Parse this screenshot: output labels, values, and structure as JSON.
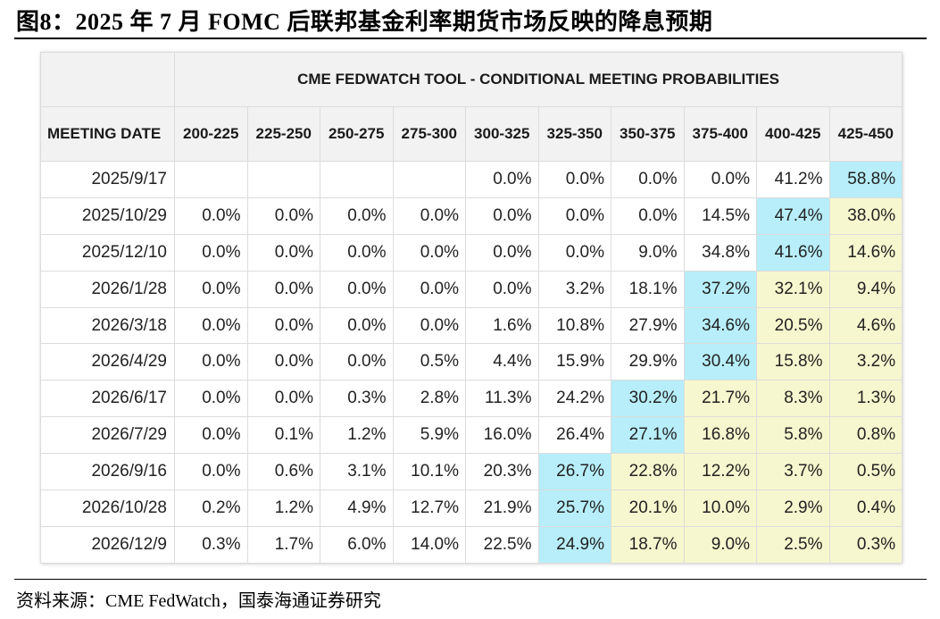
{
  "figure": {
    "title": "图8：2025 年 7 月 FOMC 后联邦基金利率期货市场反映的降息预期",
    "source": "资料来源：CME FedWatch，国泰海通证券研究"
  },
  "table": {
    "banner": "CME FEDWATCH TOOL - CONDITIONAL MEETING PROBABILITIES",
    "date_header": "MEETING DATE",
    "rate_headers": [
      "200-225",
      "225-250",
      "250-275",
      "275-300",
      "300-325",
      "325-350",
      "350-375",
      "375-400",
      "400-425",
      "425-450"
    ],
    "rows": [
      {
        "date": "2025/9/17",
        "values": [
          "",
          "",
          "",
          "",
          "0.0%",
          "0.0%",
          "0.0%",
          "0.0%",
          "41.2%",
          "58.8%"
        ],
        "hl": [
          "",
          "",
          "",
          "",
          "",
          "",
          "",
          "",
          "",
          "c"
        ]
      },
      {
        "date": "2025/10/29",
        "values": [
          "0.0%",
          "0.0%",
          "0.0%",
          "0.0%",
          "0.0%",
          "0.0%",
          "0.0%",
          "14.5%",
          "47.4%",
          "38.0%"
        ],
        "hl": [
          "",
          "",
          "",
          "",
          "",
          "",
          "",
          "",
          "c",
          "y"
        ]
      },
      {
        "date": "2025/12/10",
        "values": [
          "0.0%",
          "0.0%",
          "0.0%",
          "0.0%",
          "0.0%",
          "0.0%",
          "9.0%",
          "34.8%",
          "41.6%",
          "14.6%"
        ],
        "hl": [
          "",
          "",
          "",
          "",
          "",
          "",
          "",
          "",
          "c",
          "y"
        ]
      },
      {
        "date": "2026/1/28",
        "values": [
          "0.0%",
          "0.0%",
          "0.0%",
          "0.0%",
          "0.0%",
          "3.2%",
          "18.1%",
          "37.2%",
          "32.1%",
          "9.4%"
        ],
        "hl": [
          "",
          "",
          "",
          "",
          "",
          "",
          "",
          "c",
          "y",
          "y"
        ]
      },
      {
        "date": "2026/3/18",
        "values": [
          "0.0%",
          "0.0%",
          "0.0%",
          "0.0%",
          "1.6%",
          "10.8%",
          "27.9%",
          "34.6%",
          "20.5%",
          "4.6%"
        ],
        "hl": [
          "",
          "",
          "",
          "",
          "",
          "",
          "",
          "c",
          "y",
          "y"
        ]
      },
      {
        "date": "2026/4/29",
        "values": [
          "0.0%",
          "0.0%",
          "0.0%",
          "0.5%",
          "4.4%",
          "15.9%",
          "29.9%",
          "30.4%",
          "15.8%",
          "3.2%"
        ],
        "hl": [
          "",
          "",
          "",
          "",
          "",
          "",
          "",
          "c",
          "y",
          "y"
        ]
      },
      {
        "date": "2026/6/17",
        "values": [
          "0.0%",
          "0.0%",
          "0.3%",
          "2.8%",
          "11.3%",
          "24.2%",
          "30.2%",
          "21.7%",
          "8.3%",
          "1.3%"
        ],
        "hl": [
          "",
          "",
          "",
          "",
          "",
          "",
          "c",
          "y",
          "y",
          "y"
        ]
      },
      {
        "date": "2026/7/29",
        "values": [
          "0.0%",
          "0.1%",
          "1.2%",
          "5.9%",
          "16.0%",
          "26.4%",
          "27.1%",
          "16.8%",
          "5.8%",
          "0.8%"
        ],
        "hl": [
          "",
          "",
          "",
          "",
          "",
          "",
          "c",
          "y",
          "y",
          "y"
        ]
      },
      {
        "date": "2026/9/16",
        "values": [
          "0.0%",
          "0.6%",
          "3.1%",
          "10.1%",
          "20.3%",
          "26.7%",
          "22.8%",
          "12.2%",
          "3.7%",
          "0.5%"
        ],
        "hl": [
          "",
          "",
          "",
          "",
          "",
          "c",
          "y",
          "y",
          "y",
          "y"
        ]
      },
      {
        "date": "2026/10/28",
        "values": [
          "0.2%",
          "1.2%",
          "4.9%",
          "12.7%",
          "21.9%",
          "25.7%",
          "20.1%",
          "10.0%",
          "2.9%",
          "0.4%"
        ],
        "hl": [
          "",
          "",
          "",
          "",
          "",
          "c",
          "y",
          "y",
          "y",
          "y"
        ]
      },
      {
        "date": "2026/12/9",
        "values": [
          "0.3%",
          "1.7%",
          "6.0%",
          "14.0%",
          "22.5%",
          "24.9%",
          "18.7%",
          "9.0%",
          "2.5%",
          "0.3%"
        ],
        "hl": [
          "",
          "",
          "",
          "",
          "",
          "c",
          "y",
          "y",
          "y",
          "y"
        ]
      }
    ]
  },
  "colors": {
    "highlight_current": "#b7eef9",
    "highlight_below": "#f7f7cf",
    "header_bg": "#f2f2f2"
  }
}
